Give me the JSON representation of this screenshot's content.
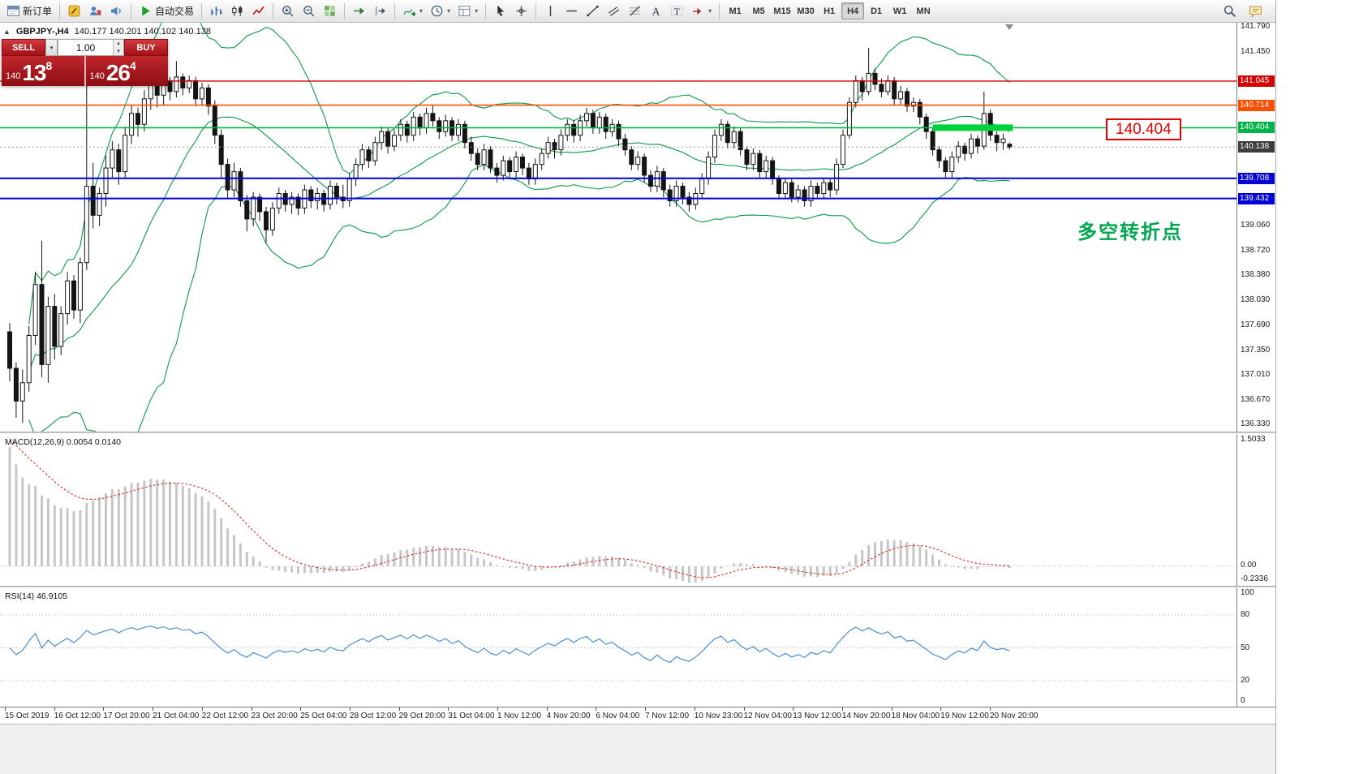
{
  "toolbar": {
    "groups": [
      [
        {
          "name": "new-order-button",
          "icon": "new-order",
          "label": "新订单"
        }
      ],
      [
        {
          "name": "metaeditor-button",
          "icon": "metaeditor"
        },
        {
          "name": "profiles-button",
          "icon": "profiles"
        },
        {
          "name": "alerts-button",
          "icon": "alerts"
        }
      ],
      [
        {
          "name": "autotrading-button",
          "icon": "autotrading",
          "label": "自动交易"
        }
      ],
      [
        {
          "name": "bar-chart-button",
          "icon": "bars"
        },
        {
          "name": "candlestick-chart-button",
          "icon": "candles"
        },
        {
          "name": "line-chart-button",
          "icon": "linechart"
        }
      ],
      [
        {
          "name": "zoom-in-button",
          "icon": "zoom-in"
        },
        {
          "name": "zoom-out-button",
          "icon": "zoom-out"
        },
        {
          "name": "tile-windows-button",
          "icon": "tile"
        }
      ],
      [
        {
          "name": "auto-scroll-button",
          "icon": "auto-scroll"
        },
        {
          "name": "chart-shift-button",
          "icon": "chart-shift"
        }
      ],
      [
        {
          "name": "indicators-button",
          "icon": "indicators",
          "caret": true
        },
        {
          "name": "periods-button",
          "icon": "periods",
          "caret": true
        },
        {
          "name": "templates-button",
          "icon": "templates",
          "caret": true
        }
      ],
      [
        {
          "name": "cursor-button",
          "icon": "cursor"
        },
        {
          "name": "crosshair-button",
          "icon": "crosshair"
        }
      ],
      [
        {
          "name": "vertical-line-button",
          "icon": "vline"
        },
        {
          "name": "horizontal-line-button",
          "icon": "hline"
        },
        {
          "name": "trendline-button",
          "icon": "trendline"
        },
        {
          "name": "channel-button",
          "icon": "channel"
        },
        {
          "name": "fibonacci-button",
          "icon": "fibonacci"
        },
        {
          "name": "text-button",
          "icon": "text"
        },
        {
          "name": "label-button",
          "icon": "label"
        },
        {
          "name": "shapes-button",
          "icon": "shapes",
          "caret": true
        }
      ]
    ],
    "timeframes": [
      "M1",
      "M5",
      "M15",
      "M30",
      "H1",
      "H4",
      "D1",
      "W1",
      "MN"
    ],
    "active_timeframe": "H4",
    "right_icons": [
      {
        "name": "search-button",
        "icon": "search"
      },
      {
        "name": "chat-button",
        "icon": "chat"
      }
    ]
  },
  "chart": {
    "title_symbol": "GBPJPY-,H4",
    "title_ohlc": "140.177 140.201 140.102 140.138",
    "annotations": {
      "callout_price": "140.404",
      "cn_note": "多空转折点",
      "highlight_segment": {
        "price": 140.404,
        "from_bar": 144,
        "to_bar": 156.5,
        "color": "#00d23c",
        "thickness": 8
      }
    },
    "price_axis": {
      "max": 141.79,
      "min": 136.33,
      "plain_labels": [
        "141.790",
        "141.450",
        "139.060",
        "138.720",
        "138.380",
        "138.030",
        "137.690",
        "137.350",
        "137.010",
        "136.670",
        "136.330"
      ],
      "badges": [
        {
          "value": "141.045",
          "color": "#d40000"
        },
        {
          "value": "140.714",
          "color": "#ff4e00"
        },
        {
          "value": "140.404",
          "color": "#00b44a"
        },
        {
          "value": "140.138",
          "color": "#3c3c3c"
        },
        {
          "value": "139.708",
          "color": "#0000d8"
        },
        {
          "value": "139.432",
          "color": "#0000d8"
        }
      ]
    },
    "hlines": [
      {
        "price": 141.045,
        "color": "#d40000",
        "width": 1.4,
        "dash": ""
      },
      {
        "price": 140.714,
        "color": "#ff4e00",
        "width": 1.6,
        "dash": ""
      },
      {
        "price": 140.404,
        "color": "#00b44a",
        "width": 1.6,
        "dash": ""
      },
      {
        "price": 139.708,
        "color": "#0000d8",
        "width": 2,
        "dash": ""
      },
      {
        "price": 139.432,
        "color": "#0000d8",
        "width": 2,
        "dash": ""
      },
      {
        "price": 140.138,
        "color": "#999999",
        "width": 1,
        "dash": "2 3"
      }
    ]
  },
  "trade_panel": {
    "sell_label": "SELL",
    "buy_label": "BUY",
    "volume": "1.00",
    "sell_price_prefix": "140",
    "sell_price_big": "13",
    "sell_price_sup": "8",
    "buy_price_prefix": "140",
    "buy_price_big": "26",
    "buy_price_sup": "4"
  },
  "macd_panel": {
    "label": "MACD(12,26,9) 0.0054 0.0140",
    "axis_max": "1.5033",
    "axis_zero": "0.00",
    "axis_min": "-0.2336",
    "max": 1.5033,
    "min": -0.2336
  },
  "rsi_panel": {
    "label": "RSI(14) 46.9105",
    "axis_labels": [
      "100",
      "80",
      "50",
      "20",
      "0"
    ],
    "levels": [
      80,
      50,
      20
    ]
  },
  "time_axis": {
    "labels": [
      "15 Oct 2019",
      "16 Oct 12:00",
      "17 Oct 20:00",
      "21 Oct 04:00",
      "22 Oct 12:00",
      "23 Oct 20:00",
      "25 Oct 04:00",
      "28 Oct 12:00",
      "29 Oct 20:00",
      "31 Oct 04:00",
      "1 Nov 12:00",
      "4 Nov 20:00",
      "6 Nov 04:00",
      "7 Nov 12:00",
      "10 Nov 23:00",
      "12 Nov 04:00",
      "13 Nov 12:00",
      "14 Nov 20:00",
      "18 Nov 04:00",
      "19 Nov 12:00",
      "20 Nov 20:00"
    ]
  },
  "colors": {
    "bull": "#ffffff",
    "bear": "#141414",
    "outline": "#141414",
    "bands": "#0b9a44",
    "macd_hist": "#c6c6c6",
    "macd_signal": "#e02020",
    "rsi_line": "#4a8fd4",
    "level_dots": "#b5b5b5"
  },
  "chart_data": {
    "type": "candlestick",
    "symbol": "GBPJPY-",
    "period": "H4",
    "ohlc_current": {
      "open": "140.177",
      "high": "140.201",
      "low": "140.102",
      "close": "140.138"
    },
    "candles": [
      [
        137.6,
        137.72,
        136.92,
        137.1
      ],
      [
        137.1,
        137.18,
        136.42,
        136.65
      ],
      [
        136.65,
        137.08,
        136.35,
        136.9
      ],
      [
        136.9,
        137.68,
        136.78,
        137.55
      ],
      [
        137.55,
        138.42,
        137.42,
        138.25
      ],
      [
        138.25,
        138.85,
        136.98,
        137.15
      ],
      [
        137.15,
        138.08,
        136.9,
        137.95
      ],
      [
        137.95,
        138.12,
        137.22,
        137.4
      ],
      [
        137.4,
        137.95,
        137.28,
        137.85
      ],
      [
        137.85,
        138.42,
        137.7,
        138.3
      ],
      [
        138.3,
        138.38,
        137.78,
        137.9
      ],
      [
        137.9,
        138.62,
        137.72,
        138.55
      ],
      [
        138.55,
        141.2,
        138.45,
        139.6
      ],
      [
        139.6,
        139.92,
        139.02,
        139.2
      ],
      [
        139.2,
        139.58,
        139.05,
        139.5
      ],
      [
        139.5,
        140.02,
        139.32,
        139.85
      ],
      [
        139.85,
        140.22,
        139.72,
        140.1
      ],
      [
        140.1,
        140.18,
        139.62,
        139.8
      ],
      [
        139.8,
        140.42,
        139.7,
        140.3
      ],
      [
        140.3,
        140.72,
        140.18,
        140.6
      ],
      [
        140.6,
        140.68,
        140.28,
        140.45
      ],
      [
        140.45,
        140.92,
        140.35,
        140.8
      ],
      [
        140.8,
        141.08,
        140.65,
        141.0
      ],
      [
        141.0,
        141.05,
        140.68,
        140.85
      ],
      [
        140.85,
        141.12,
        140.72,
        141.05
      ],
      [
        141.05,
        141.1,
        140.78,
        140.9
      ],
      [
        140.9,
        141.32,
        140.82,
        141.1
      ],
      [
        141.1,
        141.15,
        140.85,
        140.95
      ],
      [
        140.95,
        141.12,
        140.88,
        141.05
      ],
      [
        141.05,
        141.1,
        140.7,
        140.8
      ],
      [
        140.8,
        141.02,
        140.72,
        140.95
      ],
      [
        140.95,
        141.0,
        140.58,
        140.7
      ],
      [
        140.7,
        140.78,
        140.18,
        140.3
      ],
      [
        140.3,
        140.38,
        139.72,
        139.9
      ],
      [
        139.9,
        139.98,
        139.42,
        139.55
      ],
      [
        139.55,
        139.92,
        139.45,
        139.8
      ],
      [
        139.8,
        139.85,
        139.32,
        139.4
      ],
      [
        139.4,
        139.48,
        138.98,
        139.15
      ],
      [
        139.15,
        139.52,
        139.05,
        139.45
      ],
      [
        139.45,
        139.5,
        139.12,
        139.25
      ],
      [
        139.25,
        139.32,
        138.82,
        139.0
      ],
      [
        139.0,
        139.38,
        138.92,
        139.3
      ],
      [
        139.3,
        139.58,
        139.22,
        139.5
      ],
      [
        139.5,
        139.55,
        139.25,
        139.35
      ],
      [
        139.35,
        139.52,
        139.22,
        139.45
      ],
      [
        139.45,
        139.5,
        139.2,
        139.3
      ],
      [
        139.3,
        139.62,
        139.22,
        139.55
      ],
      [
        139.55,
        139.6,
        139.3,
        139.4
      ],
      [
        139.4,
        139.58,
        139.28,
        139.5
      ],
      [
        139.5,
        139.55,
        139.25,
        139.35
      ],
      [
        139.35,
        139.68,
        139.28,
        139.6
      ],
      [
        139.6,
        139.65,
        139.35,
        139.45
      ],
      [
        139.45,
        139.62,
        139.3,
        139.4
      ],
      [
        139.4,
        139.78,
        139.32,
        139.7
      ],
      [
        139.7,
        139.98,
        139.6,
        139.9
      ],
      [
        139.9,
        140.18,
        139.82,
        140.1
      ],
      [
        140.1,
        140.15,
        139.85,
        139.95
      ],
      [
        139.95,
        140.28,
        139.88,
        140.2
      ],
      [
        140.2,
        140.42,
        140.1,
        140.35
      ],
      [
        140.35,
        140.4,
        140.05,
        140.15
      ],
      [
        140.15,
        140.38,
        140.08,
        140.3
      ],
      [
        140.3,
        140.52,
        140.22,
        140.45
      ],
      [
        140.45,
        140.5,
        140.2,
        140.3
      ],
      [
        140.3,
        140.62,
        140.22,
        140.55
      ],
      [
        140.55,
        140.6,
        140.3,
        140.4
      ],
      [
        140.4,
        140.68,
        140.32,
        140.6
      ],
      [
        140.6,
        140.72,
        140.42,
        140.5
      ],
      [
        140.5,
        140.55,
        140.25,
        140.35
      ],
      [
        140.35,
        140.58,
        140.28,
        140.5
      ],
      [
        140.5,
        140.55,
        140.22,
        140.3
      ],
      [
        140.3,
        140.52,
        140.22,
        140.45
      ],
      [
        140.45,
        140.5,
        140.12,
        140.2
      ],
      [
        140.2,
        140.28,
        139.95,
        140.05
      ],
      [
        140.05,
        140.12,
        139.82,
        139.9
      ],
      [
        139.9,
        140.18,
        139.82,
        140.1
      ],
      [
        140.1,
        140.15,
        139.78,
        139.85
      ],
      [
        139.85,
        139.92,
        139.65,
        139.75
      ],
      [
        139.75,
        140.02,
        139.68,
        139.95
      ],
      [
        139.95,
        140.0,
        139.72,
        139.8
      ],
      [
        139.8,
        140.08,
        139.72,
        140.0
      ],
      [
        140.0,
        140.05,
        139.75,
        139.85
      ],
      [
        139.85,
        139.92,
        139.62,
        139.7
      ],
      [
        139.7,
        139.98,
        139.62,
        139.9
      ],
      [
        139.9,
        140.12,
        139.82,
        140.05
      ],
      [
        140.05,
        140.28,
        139.98,
        140.2
      ],
      [
        140.2,
        140.25,
        139.98,
        140.1
      ],
      [
        140.1,
        140.38,
        140.02,
        140.3
      ],
      [
        140.3,
        140.52,
        140.22,
        140.45
      ],
      [
        140.45,
        140.5,
        140.2,
        140.3
      ],
      [
        140.3,
        140.58,
        140.22,
        140.5
      ],
      [
        140.5,
        140.68,
        140.42,
        140.6
      ],
      [
        140.6,
        140.65,
        140.32,
        140.4
      ],
      [
        140.4,
        140.62,
        140.32,
        140.55
      ],
      [
        140.55,
        140.6,
        140.25,
        140.35
      ],
      [
        140.35,
        140.52,
        140.28,
        140.45
      ],
      [
        140.45,
        140.5,
        140.15,
        140.25
      ],
      [
        140.25,
        140.32,
        140.02,
        140.1
      ],
      [
        140.1,
        140.15,
        139.82,
        139.9
      ],
      [
        139.9,
        140.08,
        139.82,
        140.0
      ],
      [
        140.0,
        140.05,
        139.65,
        139.75
      ],
      [
        139.75,
        139.82,
        139.52,
        139.6
      ],
      [
        139.6,
        139.88,
        139.52,
        139.8
      ],
      [
        139.8,
        139.85,
        139.45,
        139.55
      ],
      [
        139.55,
        139.62,
        139.32,
        139.4
      ],
      [
        139.4,
        139.68,
        139.32,
        139.6
      ],
      [
        139.6,
        139.65,
        139.35,
        139.45
      ],
      [
        139.45,
        139.52,
        139.25,
        139.35
      ],
      [
        139.35,
        139.58,
        139.28,
        139.5
      ],
      [
        139.5,
        139.78,
        139.42,
        139.7
      ],
      [
        139.7,
        140.08,
        139.62,
        140.0
      ],
      [
        140.0,
        140.38,
        139.92,
        140.3
      ],
      [
        140.3,
        140.52,
        140.22,
        140.45
      ],
      [
        140.45,
        140.5,
        140.12,
        140.2
      ],
      [
        140.2,
        140.42,
        140.12,
        140.35
      ],
      [
        140.35,
        140.4,
        140.02,
        140.1
      ],
      [
        140.1,
        140.15,
        139.82,
        139.9
      ],
      [
        139.9,
        140.12,
        139.82,
        140.05
      ],
      [
        140.05,
        140.1,
        139.72,
        139.8
      ],
      [
        139.8,
        140.02,
        139.72,
        139.95
      ],
      [
        139.95,
        140.0,
        139.62,
        139.7
      ],
      [
        139.7,
        139.75,
        139.42,
        139.5
      ],
      [
        139.5,
        139.72,
        139.42,
        139.65
      ],
      [
        139.65,
        139.7,
        139.38,
        139.45
      ],
      [
        139.45,
        139.62,
        139.38,
        139.55
      ],
      [
        139.55,
        139.6,
        139.32,
        139.4
      ],
      [
        139.4,
        139.68,
        139.32,
        139.6
      ],
      [
        139.6,
        139.65,
        139.42,
        139.5
      ],
      [
        139.5,
        139.72,
        139.42,
        139.65
      ],
      [
        139.65,
        139.7,
        139.45,
        139.55
      ],
      [
        139.55,
        139.98,
        139.48,
        139.9
      ],
      [
        139.9,
        140.38,
        139.85,
        140.3
      ],
      [
        140.3,
        140.82,
        140.25,
        140.75
      ],
      [
        140.75,
        141.12,
        140.68,
        141.05
      ],
      [
        141.05,
        141.1,
        140.78,
        140.9
      ],
      [
        140.9,
        141.5,
        140.85,
        141.15
      ],
      [
        141.15,
        141.22,
        140.92,
        141.0
      ],
      [
        141.0,
        141.08,
        140.82,
        140.9
      ],
      [
        140.9,
        141.12,
        140.85,
        141.05
      ],
      [
        141.05,
        141.1,
        140.72,
        140.8
      ],
      [
        140.8,
        140.98,
        140.72,
        140.9
      ],
      [
        140.9,
        140.95,
        140.62,
        140.7
      ],
      [
        140.7,
        140.82,
        140.62,
        140.75
      ],
      [
        140.75,
        140.8,
        140.45,
        140.55
      ],
      [
        140.55,
        140.6,
        140.25,
        140.35
      ],
      [
        140.35,
        140.4,
        140.02,
        140.1
      ],
      [
        140.1,
        140.15,
        139.85,
        139.95
      ],
      [
        139.95,
        140.0,
        139.72,
        139.8
      ],
      [
        139.8,
        140.08,
        139.72,
        140.0
      ],
      [
        140.0,
        140.22,
        139.92,
        140.15
      ],
      [
        140.15,
        140.2,
        139.95,
        140.05
      ],
      [
        140.05,
        140.32,
        139.98,
        140.25
      ],
      [
        140.25,
        140.3,
        140.05,
        140.15
      ],
      [
        140.15,
        140.9,
        140.1,
        140.6
      ],
      [
        140.6,
        140.65,
        140.22,
        140.3
      ],
      [
        140.3,
        140.35,
        140.08,
        140.2
      ],
      [
        140.2,
        140.32,
        140.1,
        140.25
      ],
      [
        140.177,
        140.201,
        140.102,
        140.138
      ]
    ],
    "indicators": {
      "bollinger": {
        "period": 20,
        "deviation": 2
      },
      "macd": {
        "fast": 12,
        "slow": 26,
        "signal": 9,
        "seed_fast_offset": 0.95,
        "seed_slow_offset": -0.65,
        "seed_signal": 1.5033,
        "current": "0.0054 0.0140"
      },
      "rsi": {
        "period": 14,
        "current": "46.9105"
      }
    }
  }
}
